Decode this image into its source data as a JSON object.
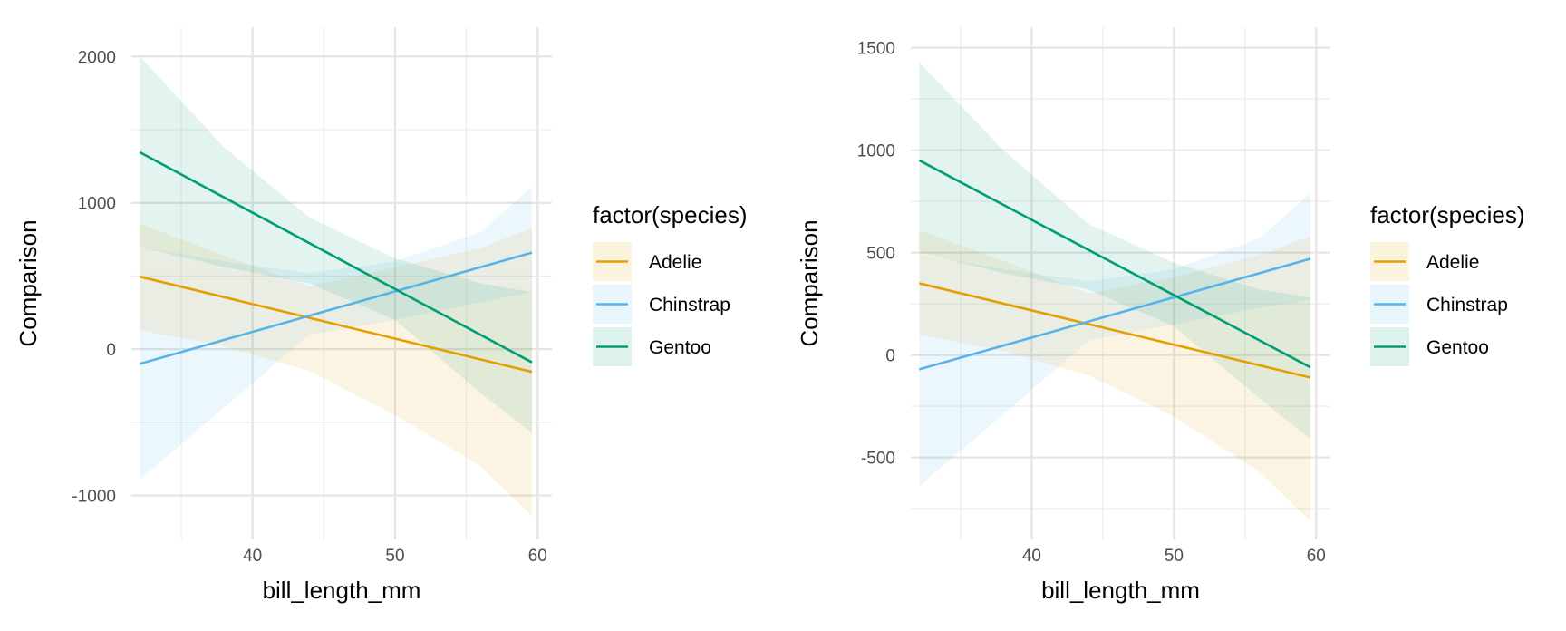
{
  "chart_data": [
    {
      "type": "line",
      "title": "",
      "xlabel": "bill_length_mm",
      "ylabel": "Comparison",
      "xlim": [
        31.5,
        61.0
      ],
      "ylim": [
        -1300,
        2200
      ],
      "x_ticks": [
        40,
        50,
        60
      ],
      "y_ticks": [
        -1000,
        0,
        1000,
        2000
      ],
      "grid": true,
      "legend": {
        "title": "factor(species)",
        "position": "right"
      },
      "series": [
        {
          "name": "Adelie",
          "color": "#E69F00",
          "x": [
            32.1,
            59.6
          ],
          "y": [
            495,
            -155
          ],
          "ribbon": {
            "x": [
              32.1,
              38,
              44,
              50,
              56,
              59.6
            ],
            "lower": [
              130,
              20,
              -150,
              -450,
              -800,
              -1140
            ],
            "upper": [
              860,
              640,
              430,
              560,
              690,
              830
            ]
          }
        },
        {
          "name": "Chinstrap",
          "color": "#56B4E9",
          "x": [
            32.1,
            59.6
          ],
          "y": [
            -100,
            660
          ],
          "ribbon": {
            "x": [
              32.1,
              38,
              44,
              50,
              56,
              59.6
            ],
            "lower": [
              -890,
              -400,
              100,
              200,
              320,
              390
            ],
            "upper": [
              700,
              600,
              520,
              600,
              800,
              1110
            ]
          }
        },
        {
          "name": "Gentoo",
          "color": "#009E73",
          "x": [
            32.1,
            59.6
          ],
          "y": [
            1345,
            -90
          ],
          "ribbon": {
            "x": [
              32.1,
              38,
              44,
              50,
              56,
              59.6
            ],
            "lower": [
              700,
              560,
              450,
              200,
              -300,
              -570
            ],
            "upper": [
              2000,
              1380,
              900,
              620,
              450,
              390
            ]
          }
        }
      ]
    },
    {
      "type": "line",
      "title": "",
      "xlabel": "bill_length_mm",
      "ylabel": "Comparison",
      "xlim": [
        31.5,
        61.0
      ],
      "ylim": [
        -900,
        1600
      ],
      "x_ticks": [
        40,
        50,
        60
      ],
      "y_ticks": [
        -500,
        0,
        500,
        1000,
        1500
      ],
      "grid": true,
      "legend": {
        "title": "factor(species)",
        "position": "right"
      },
      "series": [
        {
          "name": "Adelie",
          "color": "#E69F00",
          "x": [
            32.1,
            59.6
          ],
          "y": [
            350,
            -110
          ],
          "ribbon": {
            "x": [
              32.1,
              38,
              44,
              50,
              56,
              59.6
            ],
            "lower": [
              100,
              20,
              -100,
              -300,
              -570,
              -810
            ],
            "upper": [
              610,
              460,
              300,
              380,
              490,
              580
            ]
          }
        },
        {
          "name": "Chinstrap",
          "color": "#56B4E9",
          "x": [
            32.1,
            59.6
          ],
          "y": [
            -70,
            470
          ],
          "ribbon": {
            "x": [
              32.1,
              38,
              44,
              50,
              56,
              59.6
            ],
            "lower": [
              -640,
              -290,
              70,
              150,
              230,
              270
            ],
            "upper": [
              490,
              420,
              360,
              420,
              570,
              790
            ]
          }
        },
        {
          "name": "Gentoo",
          "color": "#009E73",
          "x": [
            32.1,
            59.6
          ],
          "y": [
            950,
            -60
          ],
          "ribbon": {
            "x": [
              32.1,
              38,
              44,
              50,
              56,
              59.6
            ],
            "lower": [
              500,
              400,
              320,
              140,
              -210,
              -410
            ],
            "upper": [
              1430,
              1000,
              640,
              450,
              320,
              280
            ]
          }
        }
      ]
    }
  ]
}
